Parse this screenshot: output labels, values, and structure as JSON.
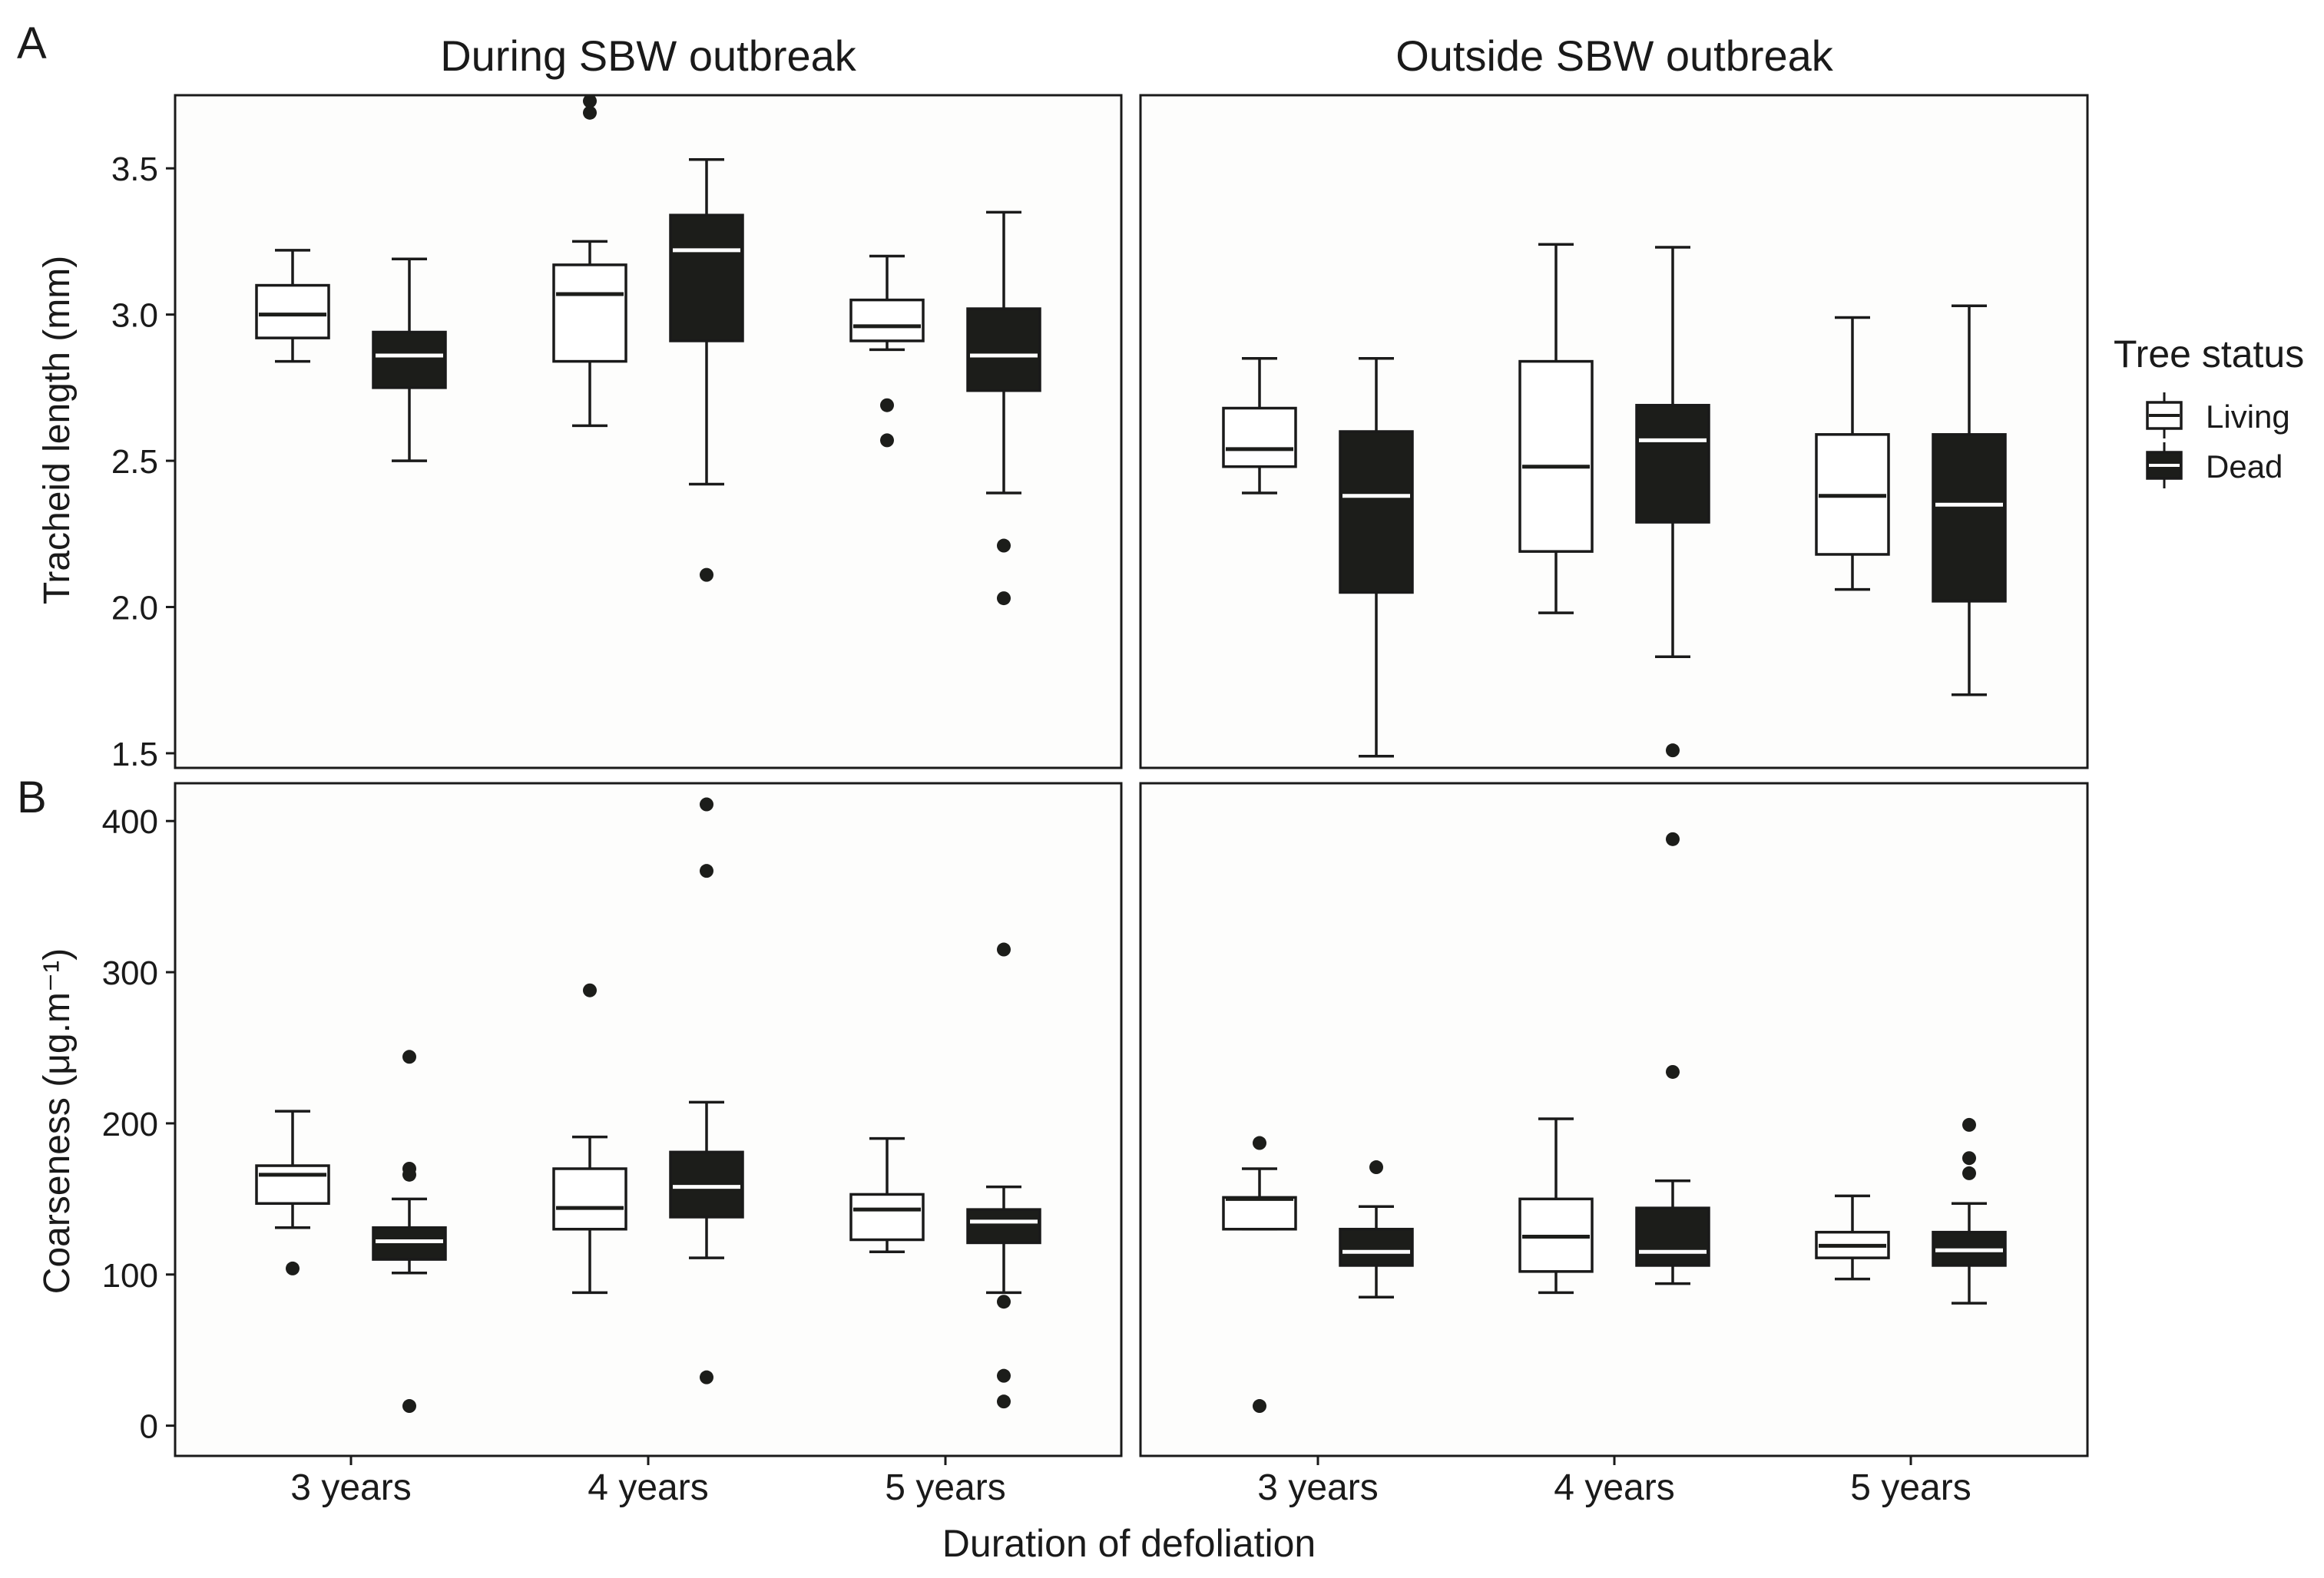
{
  "colors": {
    "panel_bg": "#fdfdfc",
    "frame": "#1a1a1a",
    "living_fill": "#ffffff",
    "dead_fill": "#1c1d1a",
    "living_median": "#1c1d1a",
    "dead_median": "#ffffff",
    "text": "#1a1a1a"
  },
  "figure": {
    "xlabel": "Duration of defoliation",
    "columns": [
      "During SBW outbreak",
      "Outside SBW outbreak"
    ],
    "categories": [
      "3 years",
      "4 years",
      "5 years"
    ],
    "legend": {
      "title": "Tree status",
      "items": [
        {
          "name": "Living",
          "key": "living"
        },
        {
          "name": "Dead",
          "key": "dead"
        }
      ]
    }
  },
  "chart_data": [
    {
      "type": "boxplot",
      "panel_label": "A",
      "ylabel": "Tracheid length (mm)",
      "ylim": [
        1.45,
        3.75
      ],
      "yticks": [
        1.5,
        2.0,
        2.5,
        3.0,
        3.5
      ],
      "ytick_labels": [
        "1.5",
        "2.0",
        "2.5",
        "3.0",
        "3.5"
      ],
      "facets": [
        {
          "title": "During SBW outbreak",
          "groups": [
            {
              "category": "3 years",
              "living": {
                "whislo": 2.84,
                "q1": 2.92,
                "med": 3.0,
                "q3": 3.1,
                "whishi": 3.22,
                "fliers": []
              },
              "dead": {
                "whislo": 2.5,
                "q1": 2.75,
                "med": 2.86,
                "q3": 2.94,
                "whishi": 3.19,
                "fliers": []
              }
            },
            {
              "category": "4 years",
              "living": {
                "whislo": 2.62,
                "q1": 2.84,
                "med": 3.07,
                "q3": 3.17,
                "whishi": 3.25,
                "fliers": [
                  3.69,
                  3.73
                ]
              },
              "dead": {
                "whislo": 2.42,
                "q1": 2.91,
                "med": 3.22,
                "q3": 3.34,
                "whishi": 3.53,
                "fliers": [
                  2.11
                ]
              }
            },
            {
              "category": "5 years",
              "living": {
                "whislo": 2.88,
                "q1": 2.91,
                "med": 2.96,
                "q3": 3.05,
                "whishi": 3.2,
                "fliers": [
                  2.57,
                  2.69
                ]
              },
              "dead": {
                "whislo": 2.39,
                "q1": 2.74,
                "med": 2.86,
                "q3": 3.02,
                "whishi": 3.35,
                "fliers": [
                  2.03,
                  2.21
                ]
              }
            }
          ]
        },
        {
          "title": "Outside SBW outbreak",
          "groups": [
            {
              "category": "3 years",
              "living": {
                "whislo": 2.39,
                "q1": 2.48,
                "med": 2.54,
                "q3": 2.68,
                "whishi": 2.85,
                "fliers": []
              },
              "dead": {
                "whislo": 1.49,
                "q1": 2.05,
                "med": 2.38,
                "q3": 2.6,
                "whishi": 2.85,
                "fliers": []
              }
            },
            {
              "category": "4 years",
              "living": {
                "whislo": 1.98,
                "q1": 2.19,
                "med": 2.48,
                "q3": 2.84,
                "whishi": 3.24,
                "fliers": []
              },
              "dead": {
                "whislo": 1.83,
                "q1": 2.29,
                "med": 2.57,
                "q3": 2.69,
                "whishi": 3.23,
                "fliers": [
                  1.51
                ]
              }
            },
            {
              "category": "5 years",
              "living": {
                "whislo": 2.06,
                "q1": 2.18,
                "med": 2.38,
                "q3": 2.59,
                "whishi": 2.99,
                "fliers": []
              },
              "dead": {
                "whislo": 1.7,
                "q1": 2.02,
                "med": 2.35,
                "q3": 2.59,
                "whishi": 3.03,
                "fliers": []
              }
            }
          ]
        }
      ]
    },
    {
      "type": "boxplot",
      "panel_label": "B",
      "ylabel": "Coarseness (μg.m⁻¹)",
      "ylim": [
        -20,
        425
      ],
      "yticks": [
        0,
        100,
        200,
        300,
        400
      ],
      "ytick_labels": [
        "0",
        "100",
        "200",
        "300",
        "400"
      ],
      "facets": [
        {
          "title": "During SBW outbreak",
          "groups": [
            {
              "category": "3 years",
              "living": {
                "whislo": 131,
                "q1": 147,
                "med": 166,
                "q3": 172,
                "whishi": 208,
                "fliers": [
                  104
                ]
              },
              "dead": {
                "whislo": 101,
                "q1": 110,
                "med": 122,
                "q3": 131,
                "whishi": 150,
                "fliers": [
                  13,
                  166,
                  170,
                  244
                ]
              }
            },
            {
              "category": "4 years",
              "living": {
                "whislo": 88,
                "q1": 130,
                "med": 144,
                "q3": 170,
                "whishi": 191,
                "fliers": [
                  288
                ]
              },
              "dead": {
                "whislo": 111,
                "q1": 138,
                "med": 158,
                "q3": 181,
                "whishi": 214,
                "fliers": [
                  32,
                  367,
                  411
                ]
              }
            },
            {
              "category": "5 years",
              "living": {
                "whislo": 115,
                "q1": 123,
                "med": 143,
                "q3": 153,
                "whishi": 190,
                "fliers": []
              },
              "dead": {
                "whislo": 88,
                "q1": 121,
                "med": 135,
                "q3": 143,
                "whishi": 158,
                "fliers": [
                  16,
                  33,
                  82,
                  315
                ]
              }
            }
          ]
        },
        {
          "title": "Outside SBW outbreak",
          "groups": [
            {
              "category": "3 years",
              "living": {
                "whislo": 130,
                "q1": 130,
                "med": 150,
                "q3": 151,
                "whishi": 170,
                "fliers": [
                  13,
                  187
                ]
              },
              "dead": {
                "whislo": 85,
                "q1": 106,
                "med": 115,
                "q3": 130,
                "whishi": 145,
                "fliers": [
                  171
                ]
              }
            },
            {
              "category": "4 years",
              "living": {
                "whislo": 88,
                "q1": 102,
                "med": 125,
                "q3": 150,
                "whishi": 203,
                "fliers": []
              },
              "dead": {
                "whislo": 94,
                "q1": 106,
                "med": 115,
                "q3": 144,
                "whishi": 162,
                "fliers": [
                  234,
                  388
                ]
              }
            },
            {
              "category": "5 years",
              "living": {
                "whislo": 97,
                "q1": 111,
                "med": 119,
                "q3": 128,
                "whishi": 152,
                "fliers": []
              },
              "dead": {
                "whislo": 81,
                "q1": 106,
                "med": 116,
                "q3": 128,
                "whishi": 147,
                "fliers": [
                  167,
                  177,
                  199
                ]
              }
            }
          ]
        }
      ]
    }
  ]
}
